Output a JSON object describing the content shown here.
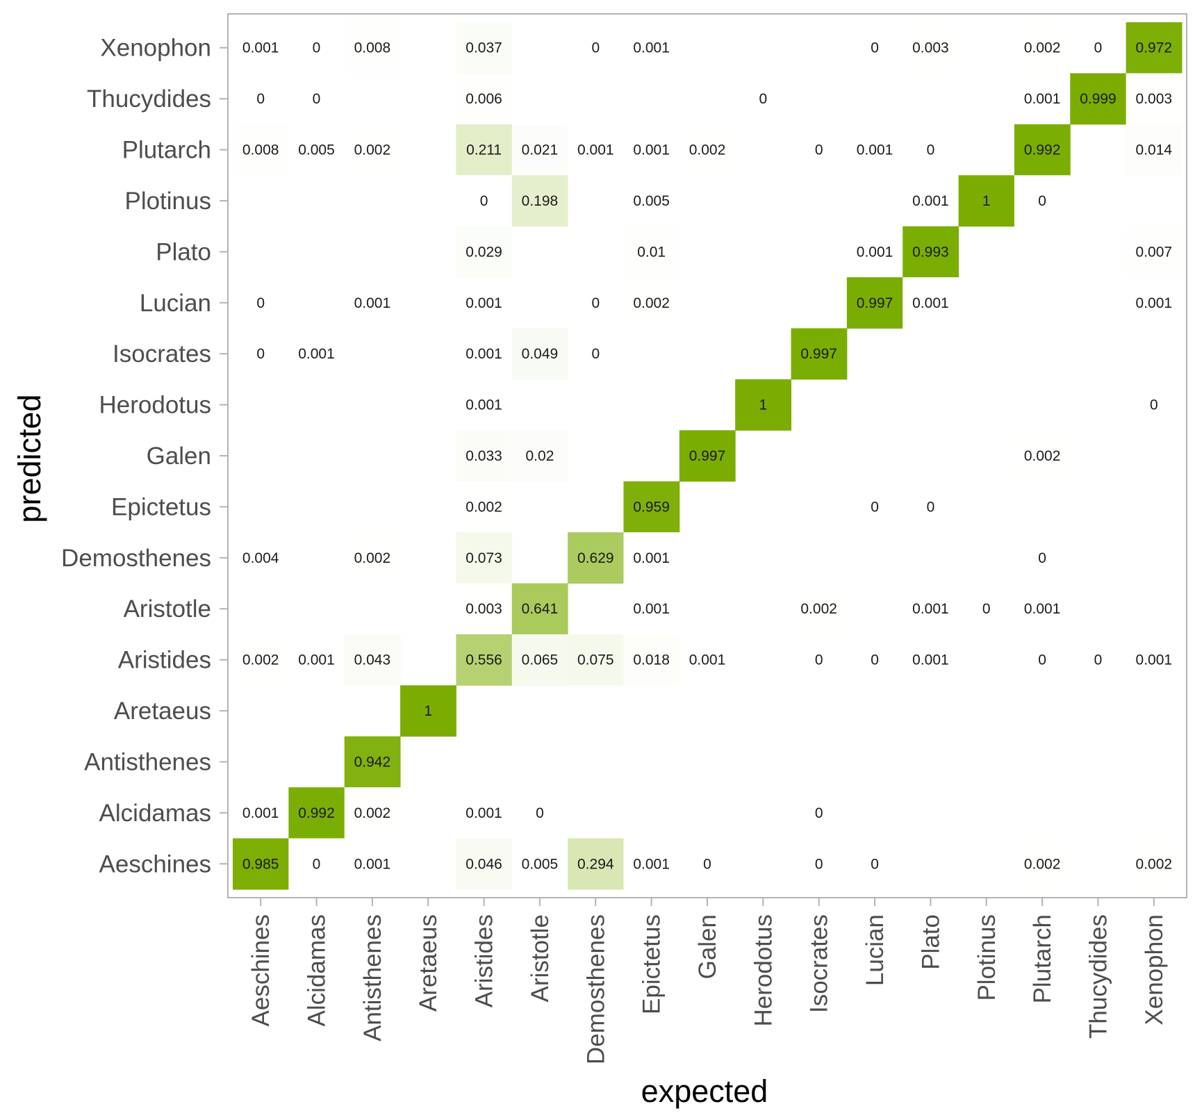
{
  "chart_data": {
    "type": "heatmap",
    "xlabel": "expected",
    "ylabel": "predicted",
    "x_categories": [
      "Aeschines",
      "Alcidamas",
      "Antisthenes",
      "Aretaeus",
      "Aristides",
      "Aristotle",
      "Demosthenes",
      "Epictetus",
      "Galen",
      "Herodotus",
      "Isocrates",
      "Lucian",
      "Plato",
      "Plotinus",
      "Plutarch",
      "Thucydides",
      "Xenophon"
    ],
    "y_categories": [
      "Aeschines",
      "Alcidamas",
      "Antisthenes",
      "Aretaeus",
      "Aristides",
      "Aristotle",
      "Demosthenes",
      "Epictetus",
      "Galen",
      "Herodotus",
      "Isocrates",
      "Lucian",
      "Plato",
      "Plotinus",
      "Plutarch",
      "Thucydides",
      "Xenophon"
    ],
    "value_range": [
      0,
      1
    ],
    "color_low": "#ffffff",
    "color_high": "#7aad00",
    "grid": false,
    "legend": "none",
    "cells": [
      {
        "x": "Aeschines",
        "y": "Xenophon",
        "label": "0.001"
      },
      {
        "x": "Alcidamas",
        "y": "Xenophon",
        "label": "0"
      },
      {
        "x": "Antisthenes",
        "y": "Xenophon",
        "label": "0.008"
      },
      {
        "x": "Aristides",
        "y": "Xenophon",
        "label": "0.037"
      },
      {
        "x": "Demosthenes",
        "y": "Xenophon",
        "label": "0"
      },
      {
        "x": "Epictetus",
        "y": "Xenophon",
        "label": "0.001"
      },
      {
        "x": "Lucian",
        "y": "Xenophon",
        "label": "0"
      },
      {
        "x": "Plato",
        "y": "Xenophon",
        "label": "0.003"
      },
      {
        "x": "Plutarch",
        "y": "Xenophon",
        "label": "0.002"
      },
      {
        "x": "Thucydides",
        "y": "Xenophon",
        "label": "0"
      },
      {
        "x": "Xenophon",
        "y": "Xenophon",
        "label": "0.972"
      },
      {
        "x": "Aeschines",
        "y": "Thucydides",
        "label": "0"
      },
      {
        "x": "Alcidamas",
        "y": "Thucydides",
        "label": "0"
      },
      {
        "x": "Aristides",
        "y": "Thucydides",
        "label": "0.006"
      },
      {
        "x": "Herodotus",
        "y": "Thucydides",
        "label": "0"
      },
      {
        "x": "Plutarch",
        "y": "Thucydides",
        "label": "0.001"
      },
      {
        "x": "Thucydides",
        "y": "Thucydides",
        "label": "0.999"
      },
      {
        "x": "Xenophon",
        "y": "Thucydides",
        "label": "0.003"
      },
      {
        "x": "Aeschines",
        "y": "Plutarch",
        "label": "0.008"
      },
      {
        "x": "Alcidamas",
        "y": "Plutarch",
        "label": "0.005"
      },
      {
        "x": "Antisthenes",
        "y": "Plutarch",
        "label": "0.002"
      },
      {
        "x": "Aristides",
        "y": "Plutarch",
        "label": "0.211"
      },
      {
        "x": "Aristotle",
        "y": "Plutarch",
        "label": "0.021"
      },
      {
        "x": "Demosthenes",
        "y": "Plutarch",
        "label": "0.001"
      },
      {
        "x": "Epictetus",
        "y": "Plutarch",
        "label": "0.001"
      },
      {
        "x": "Galen",
        "y": "Plutarch",
        "label": "0.002"
      },
      {
        "x": "Isocrates",
        "y": "Plutarch",
        "label": "0"
      },
      {
        "x": "Lucian",
        "y": "Plutarch",
        "label": "0.001"
      },
      {
        "x": "Plato",
        "y": "Plutarch",
        "label": "0"
      },
      {
        "x": "Plutarch",
        "y": "Plutarch",
        "label": "0.992"
      },
      {
        "x": "Xenophon",
        "y": "Plutarch",
        "label": "0.014"
      },
      {
        "x": "Aristides",
        "y": "Plotinus",
        "label": "0"
      },
      {
        "x": "Aristotle",
        "y": "Plotinus",
        "label": "0.198"
      },
      {
        "x": "Epictetus",
        "y": "Plotinus",
        "label": "0.005"
      },
      {
        "x": "Plato",
        "y": "Plotinus",
        "label": "0.001"
      },
      {
        "x": "Plotinus",
        "y": "Plotinus",
        "label": "1"
      },
      {
        "x": "Plutarch",
        "y": "Plotinus",
        "label": "0"
      },
      {
        "x": "Aristides",
        "y": "Plato",
        "label": "0.029"
      },
      {
        "x": "Epictetus",
        "y": "Plato",
        "label": "0.01"
      },
      {
        "x": "Lucian",
        "y": "Plato",
        "label": "0.001"
      },
      {
        "x": "Plato",
        "y": "Plato",
        "label": "0.993"
      },
      {
        "x": "Xenophon",
        "y": "Plato",
        "label": "0.007"
      },
      {
        "x": "Aeschines",
        "y": "Lucian",
        "label": "0"
      },
      {
        "x": "Antisthenes",
        "y": "Lucian",
        "label": "0.001"
      },
      {
        "x": "Aristides",
        "y": "Lucian",
        "label": "0.001"
      },
      {
        "x": "Demosthenes",
        "y": "Lucian",
        "label": "0"
      },
      {
        "x": "Epictetus",
        "y": "Lucian",
        "label": "0.002"
      },
      {
        "x": "Lucian",
        "y": "Lucian",
        "label": "0.997"
      },
      {
        "x": "Plato",
        "y": "Lucian",
        "label": "0.001"
      },
      {
        "x": "Xenophon",
        "y": "Lucian",
        "label": "0.001"
      },
      {
        "x": "Aeschines",
        "y": "Isocrates",
        "label": "0"
      },
      {
        "x": "Alcidamas",
        "y": "Isocrates",
        "label": "0.001"
      },
      {
        "x": "Aristides",
        "y": "Isocrates",
        "label": "0.001"
      },
      {
        "x": "Aristotle",
        "y": "Isocrates",
        "label": "0.049"
      },
      {
        "x": "Demosthenes",
        "y": "Isocrates",
        "label": "0"
      },
      {
        "x": "Isocrates",
        "y": "Isocrates",
        "label": "0.997"
      },
      {
        "x": "Aristides",
        "y": "Herodotus",
        "label": "0.001"
      },
      {
        "x": "Herodotus",
        "y": "Herodotus",
        "label": "1"
      },
      {
        "x": "Xenophon",
        "y": "Herodotus",
        "label": "0"
      },
      {
        "x": "Aristides",
        "y": "Galen",
        "label": "0.033"
      },
      {
        "x": "Aristotle",
        "y": "Galen",
        "label": "0.02"
      },
      {
        "x": "Galen",
        "y": "Galen",
        "label": "0.997"
      },
      {
        "x": "Plutarch",
        "y": "Galen",
        "label": "0.002"
      },
      {
        "x": "Aristides",
        "y": "Epictetus",
        "label": "0.002"
      },
      {
        "x": "Epictetus",
        "y": "Epictetus",
        "label": "0.959"
      },
      {
        "x": "Lucian",
        "y": "Epictetus",
        "label": "0"
      },
      {
        "x": "Plato",
        "y": "Epictetus",
        "label": "0"
      },
      {
        "x": "Aeschines",
        "y": "Demosthenes",
        "label": "0.004"
      },
      {
        "x": "Antisthenes",
        "y": "Demosthenes",
        "label": "0.002"
      },
      {
        "x": "Aristides",
        "y": "Demosthenes",
        "label": "0.073"
      },
      {
        "x": "Demosthenes",
        "y": "Demosthenes",
        "label": "0.629"
      },
      {
        "x": "Epictetus",
        "y": "Demosthenes",
        "label": "0.001"
      },
      {
        "x": "Plutarch",
        "y": "Demosthenes",
        "label": "0"
      },
      {
        "x": "Aristides",
        "y": "Aristotle",
        "label": "0.003"
      },
      {
        "x": "Aristotle",
        "y": "Aristotle",
        "label": "0.641"
      },
      {
        "x": "Epictetus",
        "y": "Aristotle",
        "label": "0.001"
      },
      {
        "x": "Isocrates",
        "y": "Aristotle",
        "label": "0.002"
      },
      {
        "x": "Plato",
        "y": "Aristotle",
        "label": "0.001"
      },
      {
        "x": "Plotinus",
        "y": "Aristotle",
        "label": "0"
      },
      {
        "x": "Plutarch",
        "y": "Aristotle",
        "label": "0.001"
      },
      {
        "x": "Aeschines",
        "y": "Aristides",
        "label": "0.002"
      },
      {
        "x": "Alcidamas",
        "y": "Aristides",
        "label": "0.001"
      },
      {
        "x": "Antisthenes",
        "y": "Aristides",
        "label": "0.043"
      },
      {
        "x": "Aristides",
        "y": "Aristides",
        "label": "0.556"
      },
      {
        "x": "Aristotle",
        "y": "Aristides",
        "label": "0.065"
      },
      {
        "x": "Demosthenes",
        "y": "Aristides",
        "label": "0.075"
      },
      {
        "x": "Epictetus",
        "y": "Aristides",
        "label": "0.018"
      },
      {
        "x": "Galen",
        "y": "Aristides",
        "label": "0.001"
      },
      {
        "x": "Isocrates",
        "y": "Aristides",
        "label": "0"
      },
      {
        "x": "Lucian",
        "y": "Aristides",
        "label": "0"
      },
      {
        "x": "Plato",
        "y": "Aristides",
        "label": "0.001"
      },
      {
        "x": "Plutarch",
        "y": "Aristides",
        "label": "0"
      },
      {
        "x": "Thucydides",
        "y": "Aristides",
        "label": "0"
      },
      {
        "x": "Xenophon",
        "y": "Aristides",
        "label": "0.001"
      },
      {
        "x": "Aretaeus",
        "y": "Aretaeus",
        "label": "1"
      },
      {
        "x": "Antisthenes",
        "y": "Antisthenes",
        "label": "0.942"
      },
      {
        "x": "Aeschines",
        "y": "Alcidamas",
        "label": "0.001"
      },
      {
        "x": "Alcidamas",
        "y": "Alcidamas",
        "label": "0.992"
      },
      {
        "x": "Antisthenes",
        "y": "Alcidamas",
        "label": "0.002"
      },
      {
        "x": "Aristides",
        "y": "Alcidamas",
        "label": "0.001"
      },
      {
        "x": "Aristotle",
        "y": "Alcidamas",
        "label": "0"
      },
      {
        "x": "Isocrates",
        "y": "Alcidamas",
        "label": "0"
      },
      {
        "x": "Aeschines",
        "y": "Aeschines",
        "label": "0.985"
      },
      {
        "x": "Alcidamas",
        "y": "Aeschines",
        "label": "0"
      },
      {
        "x": "Antisthenes",
        "y": "Aeschines",
        "label": "0.001"
      },
      {
        "x": "Aristides",
        "y": "Aeschines",
        "label": "0.046"
      },
      {
        "x": "Aristotle",
        "y": "Aeschines",
        "label": "0.005"
      },
      {
        "x": "Demosthenes",
        "y": "Aeschines",
        "label": "0.294"
      },
      {
        "x": "Epictetus",
        "y": "Aeschines",
        "label": "0.001"
      },
      {
        "x": "Galen",
        "y": "Aeschines",
        "label": "0"
      },
      {
        "x": "Isocrates",
        "y": "Aeschines",
        "label": "0"
      },
      {
        "x": "Lucian",
        "y": "Aeschines",
        "label": "0"
      },
      {
        "x": "Plutarch",
        "y": "Aeschines",
        "label": "0.002"
      },
      {
        "x": "Xenophon",
        "y": "Aeschines",
        "label": "0.002"
      }
    ]
  }
}
